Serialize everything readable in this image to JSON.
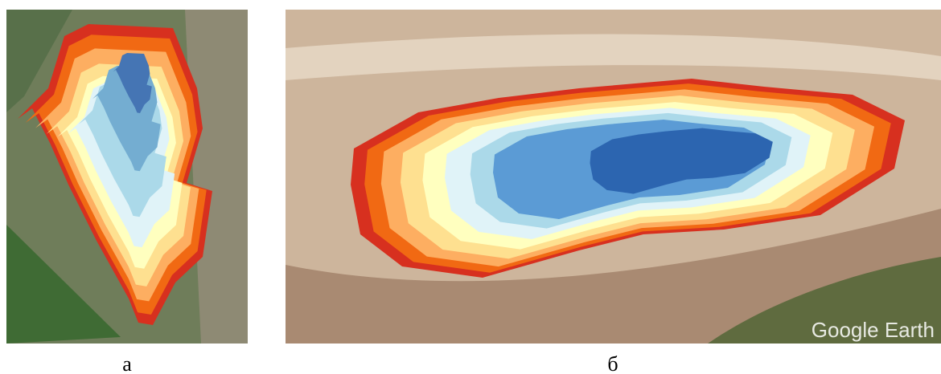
{
  "panels": [
    {
      "label": "а"
    },
    {
      "label": "б",
      "watermark": "Google Earth"
    }
  ]
}
